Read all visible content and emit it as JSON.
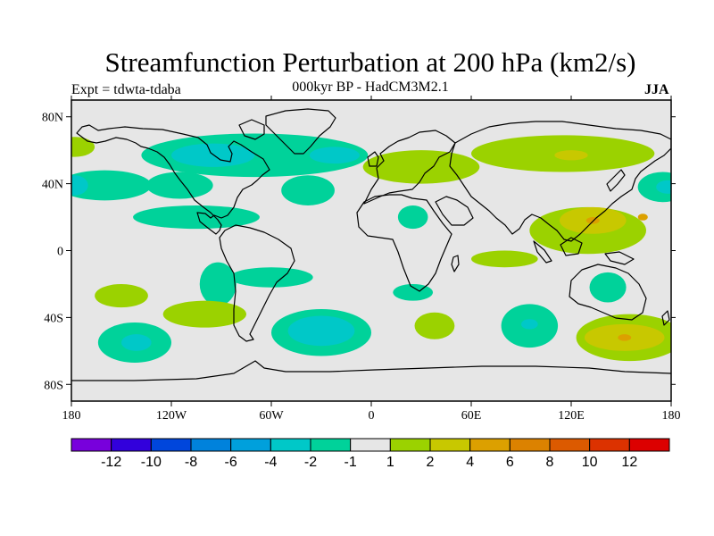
{
  "plot": {
    "title": "Streamfunction Perturbation at 200 hPa (km2/s)",
    "left_label": "Expt = tdwta-tdaba",
    "center_label": "000kyr BP - HadCM3M2.1",
    "right_label": "JJA"
  },
  "map_data": {
    "projection": "cylindrical-equidistant",
    "lon_range": [
      -180,
      180
    ],
    "lat_range": [
      -90,
      90
    ],
    "x_ticks": [
      {
        "lon": -180,
        "label": "180"
      },
      {
        "lon": -120,
        "label": "120W"
      },
      {
        "lon": -60,
        "label": "60W"
      },
      {
        "lon": 0,
        "label": "0"
      },
      {
        "lon": 60,
        "label": "60E"
      },
      {
        "lon": 120,
        "label": "120E"
      },
      {
        "lon": 180,
        "label": "180"
      }
    ],
    "y_ticks": [
      {
        "lat": 80,
        "label": "80N"
      },
      {
        "lat": 40,
        "label": "40N"
      },
      {
        "lat": 0,
        "label": "0"
      },
      {
        "lat": -40,
        "label": "40S"
      },
      {
        "lat": -80,
        "label": "80S"
      }
    ],
    "background_color": "#e6e6e6",
    "anomaly_regions": [
      {
        "name": "arctic-n-america-band",
        "lon": -70,
        "lat": 57,
        "rlon": 68,
        "rlat": 13,
        "color": "#00d29a"
      },
      {
        "name": "canada-core",
        "lon": -95,
        "lat": 57,
        "rlon": 25,
        "rlat": 7,
        "color": "#00c8c8"
      },
      {
        "name": "greenland-core",
        "lon": -22,
        "lat": 57,
        "rlon": 15,
        "rlat": 5,
        "color": "#00c8c8"
      },
      {
        "name": "n-pacific-east-lobe",
        "lon": -160,
        "lat": 39,
        "rlon": 28,
        "rlat": 9,
        "color": "#00d29a"
      },
      {
        "name": "n-pacific-west-tip",
        "lon": -178,
        "lat": 39,
        "rlon": 8,
        "rlat": 6,
        "color": "#00c8c8"
      },
      {
        "name": "ne-pacific",
        "lon": -115,
        "lat": 39,
        "rlon": 20,
        "rlat": 8,
        "color": "#00d29a"
      },
      {
        "name": "central-n-atlantic",
        "lon": -38,
        "lat": 36,
        "rlon": 16,
        "rlat": 9,
        "color": "#00d29a"
      },
      {
        "name": "caribbean-band",
        "lon": -105,
        "lat": 20,
        "rlon": 38,
        "rlat": 7,
        "color": "#00d29a"
      },
      {
        "name": "sahara",
        "lon": 25,
        "lat": 20,
        "rlon": 9,
        "rlat": 7,
        "color": "#00d29a"
      },
      {
        "name": "nw-pacific-rim",
        "lon": 175,
        "lat": 38,
        "rlon": 15,
        "rlat": 9,
        "color": "#00d29a"
      },
      {
        "name": "nw-pacific-core",
        "lon": 178,
        "lat": 38,
        "rlon": 7,
        "rlat": 4,
        "color": "#00c8c8"
      },
      {
        "name": "arctic-pacific",
        "lon": -178,
        "lat": 62,
        "rlon": 12,
        "rlat": 6,
        "color": "#9bd200"
      },
      {
        "name": "europe",
        "lon": 30,
        "lat": 50,
        "rlon": 35,
        "rlat": 10,
        "color": "#9bd200"
      },
      {
        "name": "siberia",
        "lon": 115,
        "lat": 58,
        "rlon": 55,
        "rlat": 11,
        "color": "#9bd200"
      },
      {
        "name": "siberia-core",
        "lon": 120,
        "lat": 57,
        "rlon": 10,
        "rlat": 3,
        "color": "#c8c800"
      },
      {
        "name": "asia-pacific",
        "lon": 130,
        "lat": 12,
        "rlon": 35,
        "rlat": 14,
        "color": "#9bd200"
      },
      {
        "name": "asia-pacific-inner",
        "lon": 133,
        "lat": 18,
        "rlon": 20,
        "rlat": 8,
        "color": "#c8c800"
      },
      {
        "name": "asia-pacific-core",
        "lon": 133,
        "lat": 18,
        "rlon": 4,
        "rlat": 2,
        "color": "#dca000"
      },
      {
        "name": "w-pacific-warm",
        "lon": 163,
        "lat": 20,
        "rlon": 3,
        "rlat": 2,
        "color": "#dca000"
      },
      {
        "name": "indian-ocean",
        "lon": 80,
        "lat": -5,
        "rlon": 20,
        "rlat": 5,
        "color": "#9bd200"
      },
      {
        "name": "east-pacific-tongue",
        "lon": -92,
        "lat": -20,
        "rlon": 11,
        "rlat": 13,
        "color": "#00d29a"
      },
      {
        "name": "s-atlantic-band",
        "lon": -60,
        "lat": -16,
        "rlon": 25,
        "rlat": 6,
        "color": "#00d29a"
      },
      {
        "name": "s-pacific-north",
        "lon": -150,
        "lat": -27,
        "rlon": 16,
        "rlat": 7,
        "color": "#9bd200"
      },
      {
        "name": "s-pacific-east",
        "lon": -100,
        "lat": -38,
        "rlon": 25,
        "rlat": 8,
        "color": "#9bd200"
      },
      {
        "name": "se-pacific",
        "lon": -142,
        "lat": -55,
        "rlon": 22,
        "rlat": 12,
        "color": "#00d29a"
      },
      {
        "name": "se-pacific-core",
        "lon": -141,
        "lat": -55,
        "rlon": 9,
        "rlat": 5,
        "color": "#00c8c8"
      },
      {
        "name": "s-atlantic",
        "lon": -30,
        "lat": -49,
        "rlon": 30,
        "rlat": 14,
        "color": "#00d29a"
      },
      {
        "name": "s-atlantic-core",
        "lon": -30,
        "lat": -48,
        "rlon": 20,
        "rlat": 9,
        "color": "#00c8c8"
      },
      {
        "name": "s-africa",
        "lon": 25,
        "lat": -25,
        "rlon": 12,
        "rlat": 5,
        "color": "#00d29a"
      },
      {
        "name": "s-indian",
        "lon": 38,
        "lat": -45,
        "rlon": 12,
        "rlat": 8,
        "color": "#9bd200"
      },
      {
        "name": "s-indian-east",
        "lon": 95,
        "lat": -45,
        "rlon": 17,
        "rlat": 13,
        "color": "#00d29a"
      },
      {
        "name": "s-indian-east-core",
        "lon": 95,
        "lat": -44,
        "rlon": 5,
        "rlat": 3,
        "color": "#00c8c8"
      },
      {
        "name": "australia",
        "lon": 142,
        "lat": -22,
        "rlon": 11,
        "rlat": 9,
        "color": "#00d29a"
      },
      {
        "name": "southern-ocean-warm",
        "lon": 155,
        "lat": -52,
        "rlon": 32,
        "rlat": 14,
        "color": "#9bd200"
      },
      {
        "name": "southern-ocean-inner",
        "lon": 152,
        "lat": -52,
        "rlon": 24,
        "rlat": 8,
        "color": "#c8c800"
      },
      {
        "name": "southern-ocean-core",
        "lon": 152,
        "lat": -52,
        "rlon": 4,
        "rlat": 2,
        "color": "#dca000"
      }
    ]
  },
  "colorbar": {
    "colors": [
      "#7800dc",
      "#3200dc",
      "#0046dc",
      "#0082dc",
      "#00a0dc",
      "#00c8c8",
      "#00d29a",
      "#e6e6e6",
      "#9bd200",
      "#c8c800",
      "#dca000",
      "#dc8200",
      "#dc5a00",
      "#dc3200",
      "#dc0000"
    ],
    "ticks": [
      "-12",
      "-10",
      "-8",
      "-6",
      "-4",
      "-2",
      "-1",
      "1",
      "2",
      "4",
      "6",
      "8",
      "10",
      "12"
    ]
  }
}
